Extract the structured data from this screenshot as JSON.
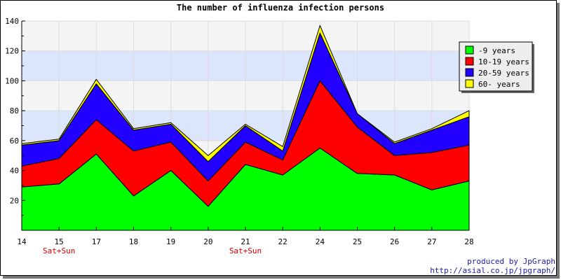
{
  "chart_data": {
    "type": "area",
    "stacked": true,
    "title": "The number of influenza infection persons",
    "xlabel": "",
    "ylabel": "",
    "x": [
      "14",
      "15",
      "17",
      "18",
      "19",
      "20",
      "21",
      "22",
      "24",
      "25",
      "26",
      "27",
      "28"
    ],
    "x_sublabels": [
      "",
      "Sat+Sun",
      "",
      "",
      "",
      "",
      "Sat+Sun",
      "",
      "",
      "",
      "",
      "",
      ""
    ],
    "ylim": [
      0,
      140
    ],
    "yticks": [
      20,
      40,
      60,
      80,
      100,
      120,
      140
    ],
    "grid": true,
    "legend_position": "top-right",
    "series": [
      {
        "name": "-9 years",
        "color": "#00ff00",
        "values": [
          29,
          31,
          51,
          23,
          40,
          16,
          44,
          37,
          55,
          38,
          37,
          27,
          33
        ]
      },
      {
        "name": "10-19 years",
        "color": "#ff0000",
        "values": [
          14,
          17,
          23,
          30,
          19,
          17,
          15,
          10,
          45,
          31,
          13,
          25,
          24
        ]
      },
      {
        "name": "20-59 years",
        "color": "#2200ff",
        "values": [
          14,
          12,
          24,
          14,
          12,
          13,
          11,
          6,
          32,
          9,
          8,
          15,
          19
        ]
      },
      {
        "name": "60- years",
        "color": "#ffff00",
        "values": [
          1,
          1,
          3,
          1,
          1,
          4,
          1,
          3,
          5,
          0,
          1,
          1,
          4
        ]
      }
    ]
  },
  "credits": {
    "line1": "produced by JpGraph",
    "line2": "http://asial.co.jp/jpgraph/"
  }
}
